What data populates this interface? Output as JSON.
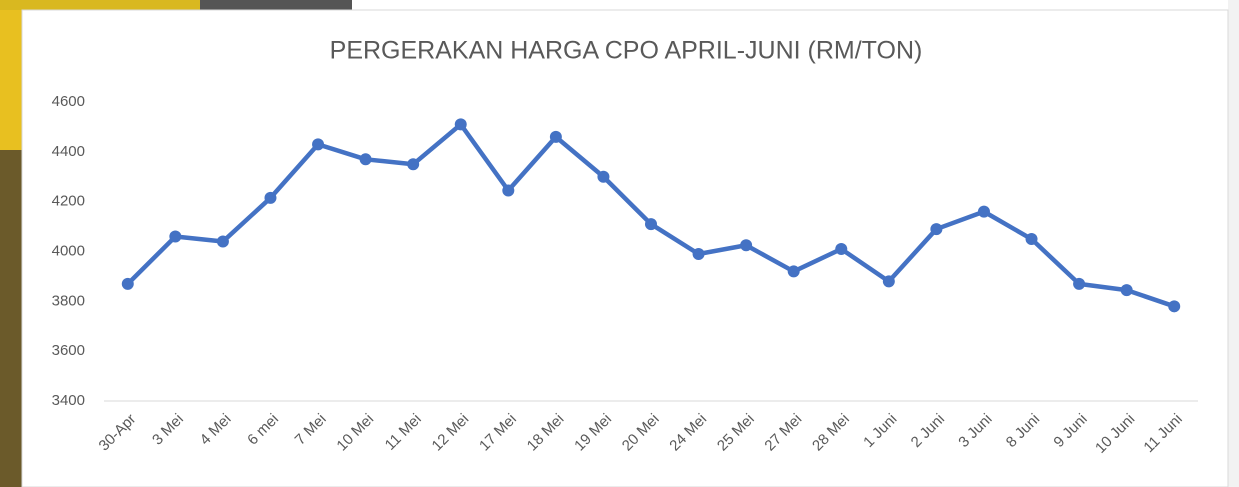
{
  "chart_data": {
    "type": "line",
    "title": "PERGERAKAN HARGA CPO APRIL-JUNI (RM/TON)",
    "categories": [
      "30-Apr",
      "3 Mei",
      "4 Mei",
      "6 mei",
      "7 Mei",
      "10 Mei",
      "11 Mei",
      "12 Mei",
      "17 Mei",
      "18 Mei",
      "19 Mei",
      "20 Mei",
      "24 Mei",
      "25 Mei",
      "27 Mei",
      "28 Mei",
      "1 Juni",
      "2 Juni",
      "3 Juni",
      "8 Juni",
      "9 Juni",
      "10 Juni",
      "11 Juni"
    ],
    "values": [
      3870,
      4060,
      4040,
      4215,
      4430,
      4370,
      4350,
      4510,
      4245,
      4460,
      4300,
      4110,
      3990,
      4025,
      3920,
      4010,
      3880,
      4090,
      4160,
      4050,
      3870,
      3845,
      3780
    ],
    "color": "#4472c4",
    "ylim": [
      3400,
      4600
    ],
    "yticks": [
      3400,
      3600,
      3800,
      4000,
      4200,
      4400,
      4600
    ],
    "grid": false
  }
}
